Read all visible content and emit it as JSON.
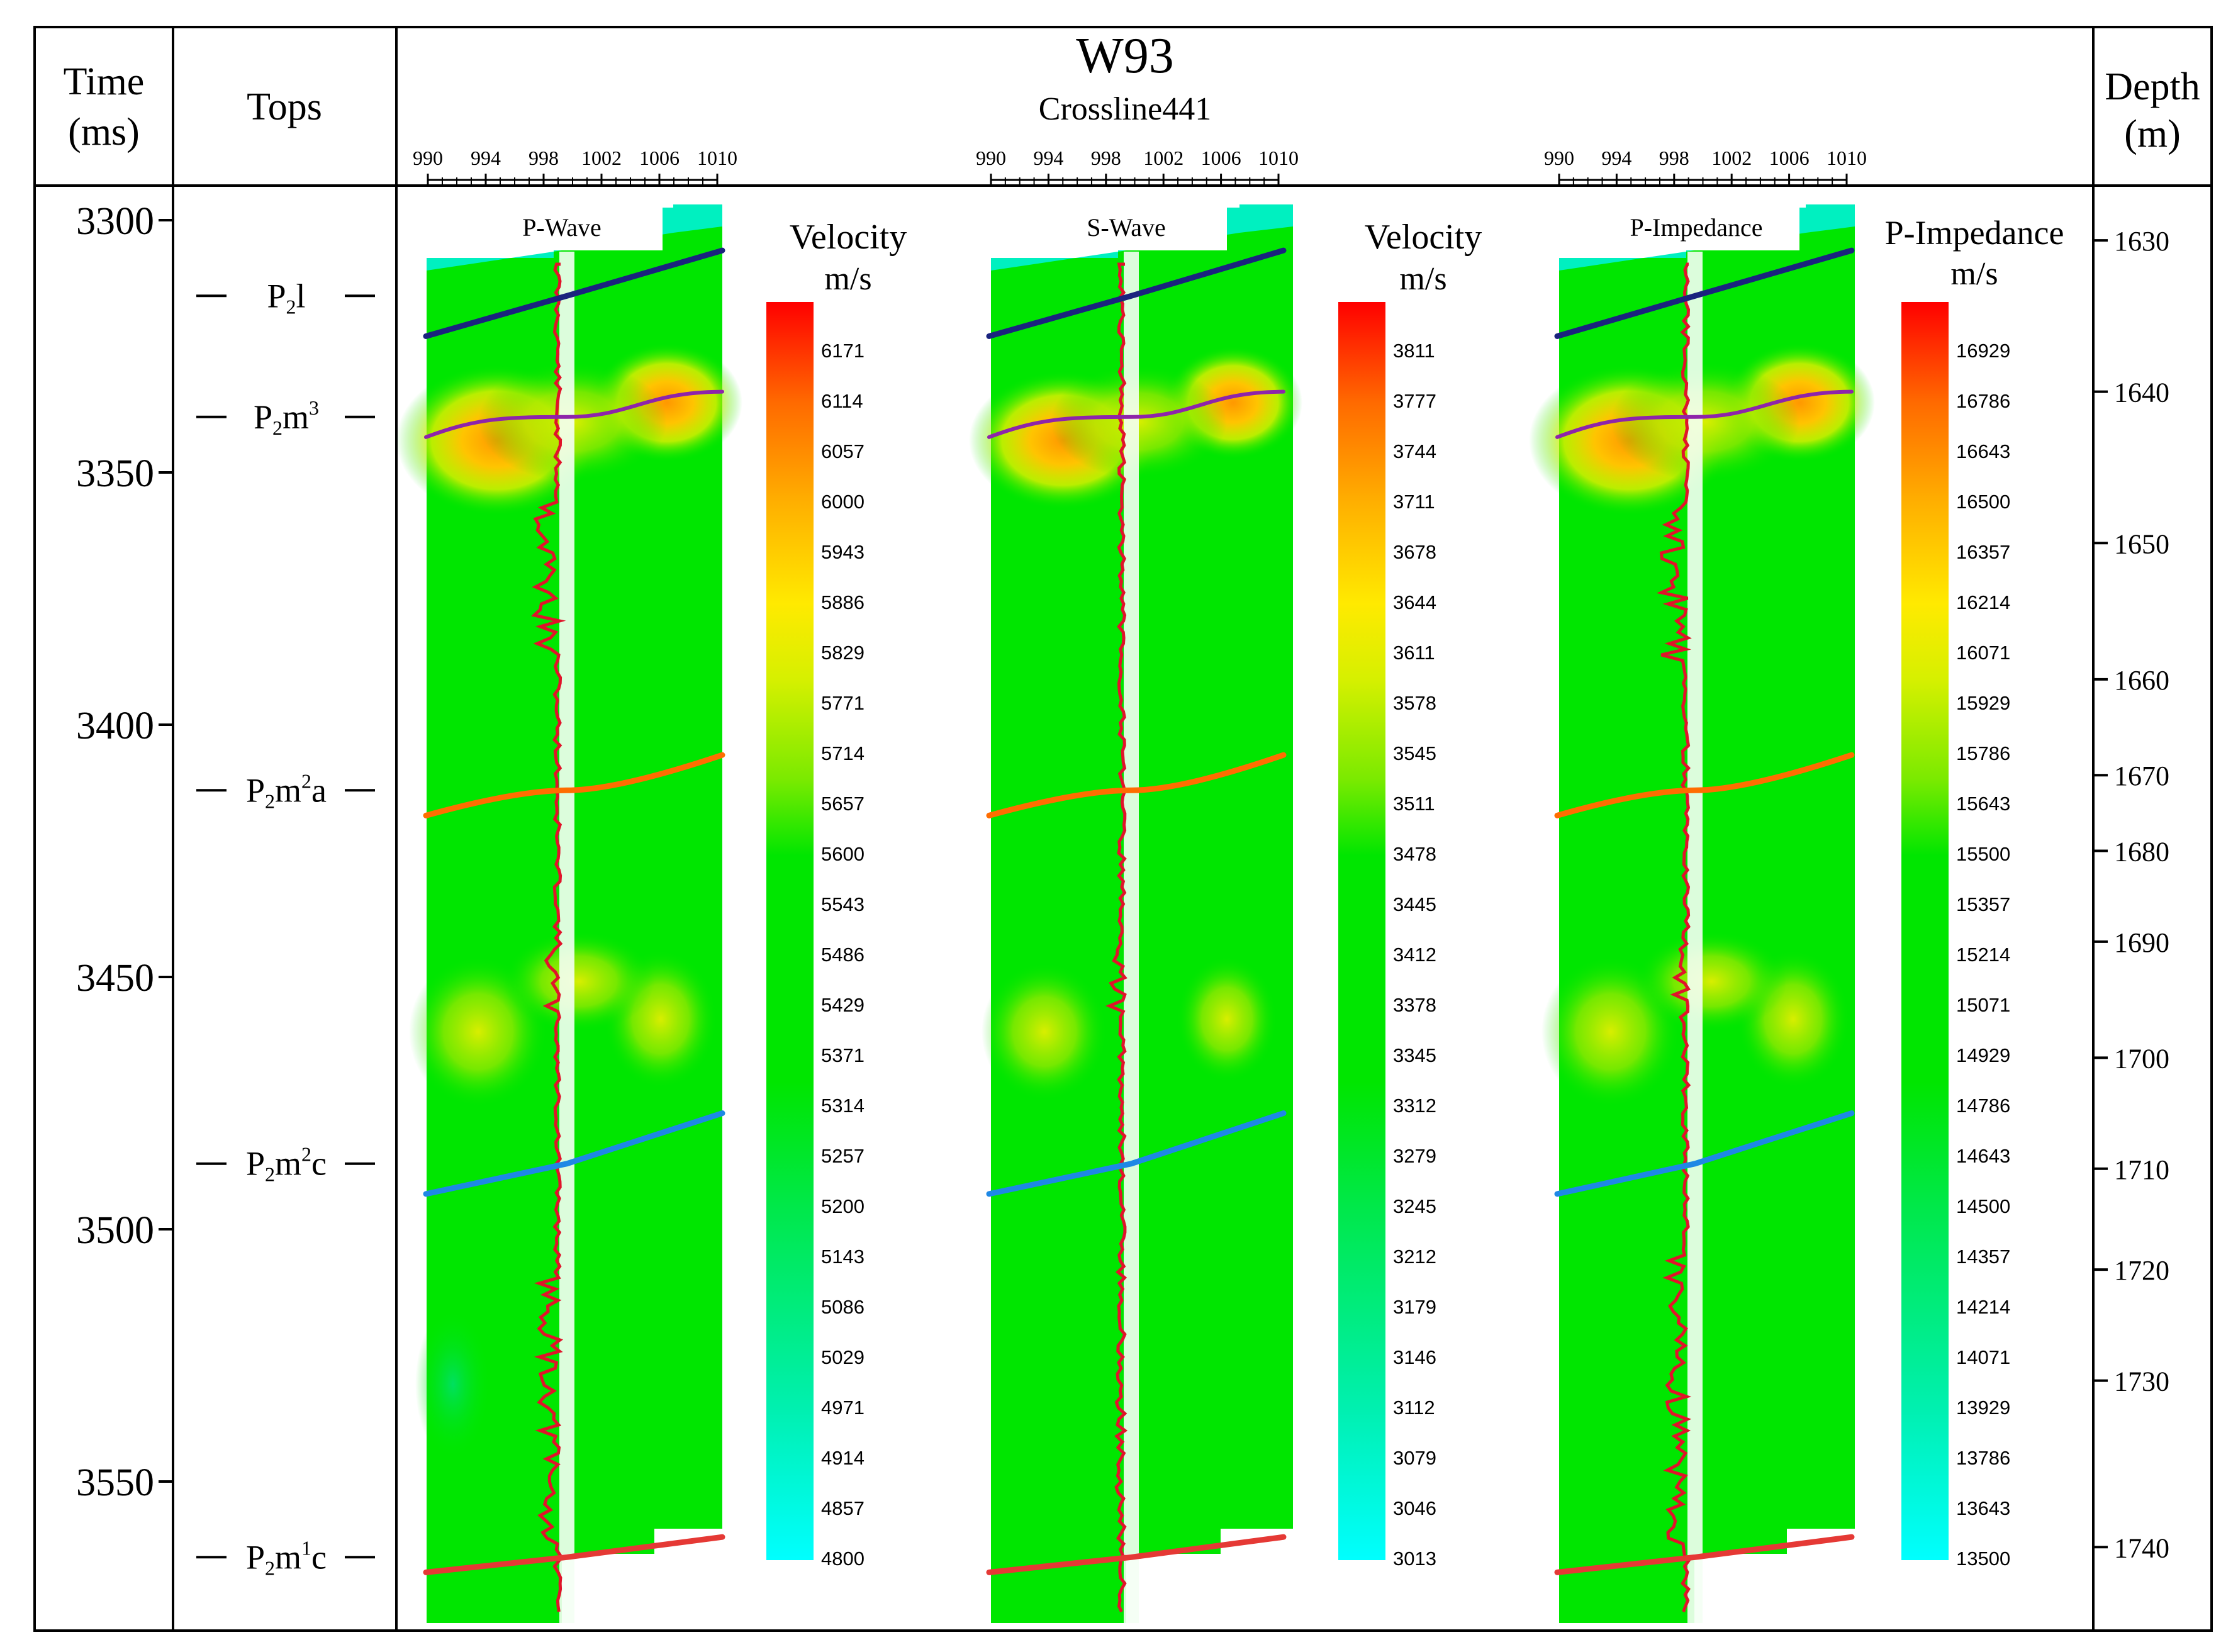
{
  "figure": {
    "well_title": "W93",
    "crossline_label": "Crossline441",
    "time_header_line1": "Time",
    "time_header_line2": "(ms)",
    "tops_header": "Tops",
    "depth_header_line1": "Depth",
    "depth_header_line2": "(m)"
  },
  "trace_axis": {
    "ticks": [
      "990",
      "994",
      "998",
      "1002",
      "1006",
      "1010"
    ]
  },
  "time_axis": {
    "range": [
      3300,
      3575
    ],
    "ticks": [
      "3300",
      "3350",
      "3400",
      "3450",
      "3500",
      "3550"
    ]
  },
  "depth_axis": {
    "ticks": [
      {
        "label": "1630",
        "time": 3304
      },
      {
        "label": "1640",
        "time": 3334
      },
      {
        "label": "1650",
        "time": 3364
      },
      {
        "label": "1660",
        "time": 3391
      },
      {
        "label": "1670",
        "time": 3410
      },
      {
        "label": "1680",
        "time": 3425
      },
      {
        "label": "1690",
        "time": 3443
      },
      {
        "label": "1700",
        "time": 3466
      },
      {
        "label": "1710",
        "time": 3488
      },
      {
        "label": "1720",
        "time": 3508
      },
      {
        "label": "1730",
        "time": 3530
      },
      {
        "label": "1740",
        "time": 3563
      }
    ]
  },
  "formation_tops": [
    {
      "base": "P",
      "sub1": "2",
      "mid": "l",
      "sup": "",
      "sub2": "",
      "time": 3315,
      "color": "#1a237e"
    },
    {
      "base": "P",
      "sub1": "2",
      "mid": "m",
      "sup": "3",
      "sub2": "",
      "time": 3339,
      "color": "#8e24aa"
    },
    {
      "base": "P",
      "sub1": "2",
      "mid": "m",
      "sup": "2",
      "sub2": "a",
      "time": 3413,
      "color": "#ff6d00"
    },
    {
      "base": "P",
      "sub1": "2",
      "mid": "m",
      "sup": "2",
      "sub2": "c",
      "time": 3487,
      "color": "#1e88e5"
    },
    {
      "base": "P",
      "sub1": "2",
      "mid": "m",
      "sup": "1",
      "sub2": "c",
      "time": 3565,
      "color": "#e53935"
    }
  ],
  "panels": [
    {
      "name": "P-Wave",
      "scale_title_line1": "Velocity",
      "scale_title_line2": "m/s",
      "scale_labels": [
        "6171",
        "6114",
        "6057",
        "6000",
        "5943",
        "5886",
        "5829",
        "5771",
        "5714",
        "5657",
        "5600",
        "5543",
        "5486",
        "5429",
        "5371",
        "5314",
        "5257",
        "5200",
        "5143",
        "5086",
        "5029",
        "4971",
        "4914",
        "4857",
        "4800"
      ]
    },
    {
      "name": "S-Wave",
      "scale_title_line1": "Velocity",
      "scale_title_line2": "m/s",
      "scale_labels": [
        "3811",
        "3777",
        "3744",
        "3711",
        "3678",
        "3644",
        "3611",
        "3578",
        "3545",
        "3511",
        "3478",
        "3445",
        "3412",
        "3378",
        "3345",
        "3312",
        "3279",
        "3245",
        "3212",
        "3179",
        "3146",
        "3112",
        "3079",
        "3046",
        "3013"
      ]
    },
    {
      "name": "P-Impedance",
      "scale_title_line1": "P-Impedance",
      "scale_title_line2": "m/s",
      "scale_labels": [
        "16929",
        "16786",
        "16643",
        "16500",
        "16357",
        "16214",
        "16071",
        "15929",
        "15786",
        "15643",
        "15500",
        "15357",
        "15214",
        "15071",
        "14929",
        "14786",
        "14643",
        "14500",
        "14357",
        "14214",
        "14071",
        "13929",
        "13786",
        "13643",
        "13500"
      ]
    }
  ],
  "colors": {
    "background": "#00e600",
    "colorbar": [
      "#00ffff",
      "#00f5d0",
      "#00ee80",
      "#00e600",
      "#00e600",
      "#66ea00",
      "#ccf000",
      "#ffea00",
      "#ffc000",
      "#ff8c00",
      "#ff4000",
      "#ff0000"
    ],
    "well_log": "#e0142a",
    "frame": "#000000"
  }
}
